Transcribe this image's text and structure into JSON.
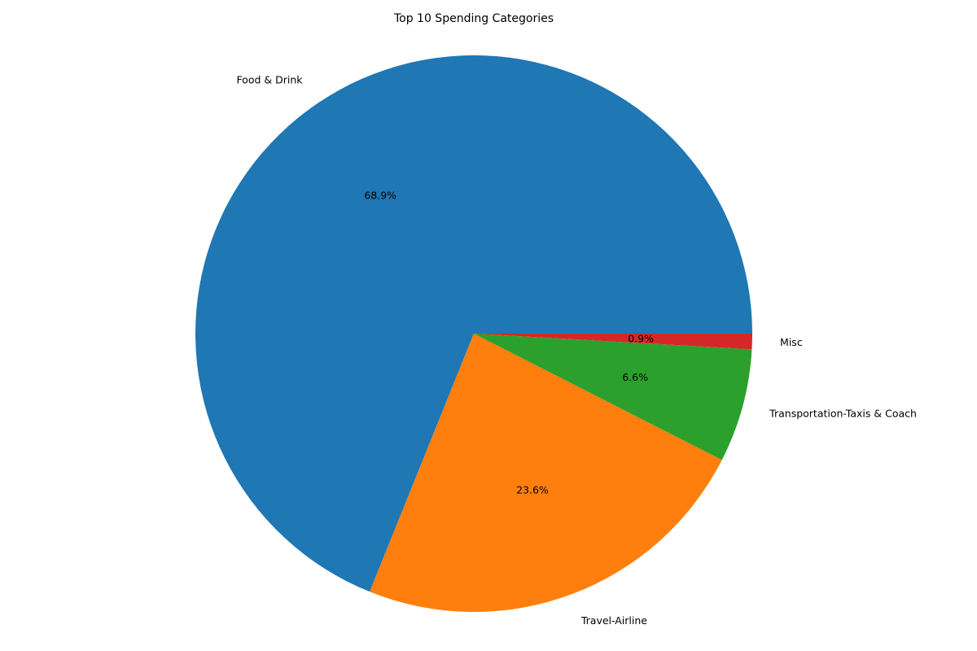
{
  "chart_data": {
    "type": "pie",
    "title": "Top 10 Spending Categories",
    "labels": [
      "Food & Drink",
      "Travel-Airline",
      "Transportation-Taxis & Coach",
      "Misc"
    ],
    "values": [
      68.9,
      23.6,
      6.6,
      0.9
    ],
    "percent_labels": [
      "68.9%",
      "23.6%",
      "6.6%",
      "0.9%"
    ],
    "colors": [
      "#1f77b4",
      "#ff7f0e",
      "#2ca02c",
      "#d62728"
    ],
    "start_angle_deg": 0,
    "direction": "counterclockwise",
    "legend": "none"
  }
}
